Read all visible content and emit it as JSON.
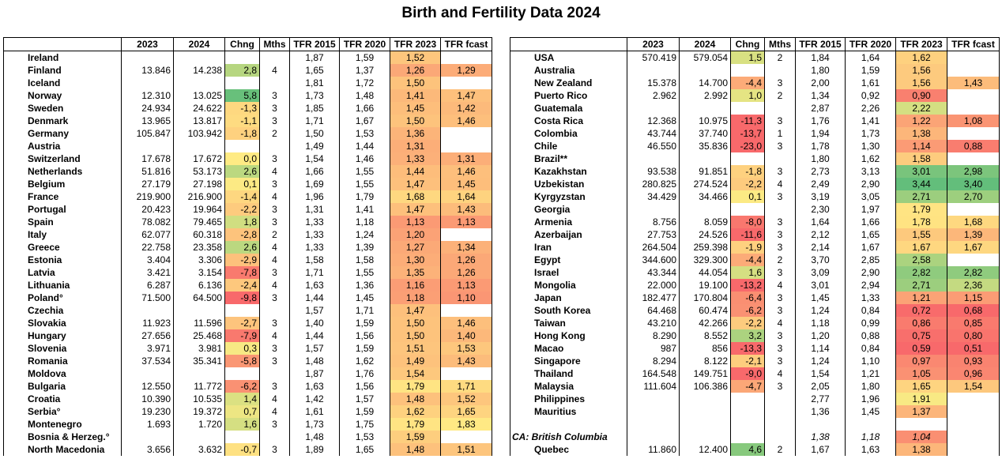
{
  "title": "Birth and Fertility Data 2024",
  "tables": [
    {
      "columns": [
        "2023",
        "2024",
        "Chng",
        "Mths",
        "TFR 2015",
        "TFR 2020",
        "TFR 2023",
        "TFR fcast"
      ],
      "rows": [
        [
          "Ireland",
          null,
          null,
          null,
          null,
          "1,87",
          "1,59",
          "1,52",
          null
        ],
        [
          "Finland",
          "13.846",
          "14.238",
          "2,8",
          "4",
          "1,65",
          "1,37",
          "1,26",
          "1,29"
        ],
        [
          "Iceland",
          null,
          null,
          null,
          null,
          "1,81",
          "1,72",
          "1,50",
          null
        ],
        [
          "Norway",
          "12.310",
          "13.025",
          "5,8",
          "3",
          "1,73",
          "1,48",
          "1,41",
          "1,47"
        ],
        [
          "Sweden",
          "24.934",
          "24.622",
          "-1,3",
          "3",
          "1,85",
          "1,66",
          "1,45",
          "1,42"
        ],
        [
          "Denmark",
          "13.965",
          "13.817",
          "-1,1",
          "3",
          "1,71",
          "1,67",
          "1,50",
          "1,46"
        ],
        [
          "Germany",
          "105.847",
          "103.942",
          "-1,8",
          "2",
          "1,50",
          "1,53",
          "1,36",
          null
        ],
        [
          "Austria",
          null,
          null,
          null,
          null,
          "1,49",
          "1,44",
          "1,31",
          null
        ],
        [
          "Switzerland",
          "17.678",
          "17.672",
          "0,0",
          "3",
          "1,54",
          "1,46",
          "1,33",
          "1,31"
        ],
        [
          "Netherlands",
          "51.816",
          "53.173",
          "2,6",
          "4",
          "1,66",
          "1,55",
          "1,44",
          "1,46"
        ],
        [
          "Belgium",
          "27.179",
          "27.198",
          "0,1",
          "3",
          "1,69",
          "1,55",
          "1,47",
          "1,45"
        ],
        [
          "France",
          "219.900",
          "216.900",
          "-1,4",
          "4",
          "1,96",
          "1,79",
          "1,68",
          "1,64"
        ],
        [
          "Portugal",
          "20.423",
          "19.964",
          "-2,2",
          "3",
          "1,31",
          "1,41",
          "1,47",
          "1,43"
        ],
        [
          "Spain",
          "78.082",
          "79.465",
          "1,8",
          "3",
          "1,33",
          "1,18",
          "1,13",
          "1,13"
        ],
        [
          "Italy",
          "62.077",
          "60.318",
          "-2,8",
          "2",
          "1,33",
          "1,24",
          "1,20",
          null
        ],
        [
          "Greece",
          "22.758",
          "23.358",
          "2,6",
          "4",
          "1,33",
          "1,39",
          "1,27",
          "1,34"
        ],
        [
          "Estonia",
          "3.404",
          "3.306",
          "-2,9",
          "4",
          "1,58",
          "1,58",
          "1,30",
          "1,26"
        ],
        [
          "Latvia",
          "3.421",
          "3.154",
          "-7,8",
          "3",
          "1,71",
          "1,55",
          "1,35",
          "1,26"
        ],
        [
          "Lithuania",
          "6.287",
          "6.136",
          "-2,4",
          "4",
          "1,63",
          "1,36",
          "1,16",
          "1,13"
        ],
        [
          "Poland°",
          "71.500",
          "64.500",
          "-9,8",
          "3",
          "1,44",
          "1,45",
          "1,18",
          "1,10"
        ],
        [
          "Czechia",
          null,
          null,
          null,
          null,
          "1,57",
          "1,71",
          "1,47",
          null
        ],
        [
          "Slovakia",
          "11.923",
          "11.596",
          "-2,7",
          "3",
          "1,40",
          "1,59",
          "1,50",
          "1,46"
        ],
        [
          "Hungary",
          "27.656",
          "25.468",
          "-7,9",
          "4",
          "1,44",
          "1,56",
          "1,50",
          "1,40"
        ],
        [
          "Slovenia",
          "3.971",
          "3.981",
          "0,3",
          "3",
          "1,57",
          "1,59",
          "1,51",
          "1,53"
        ],
        [
          "Romania",
          "37.534",
          "35.341",
          "-5,8",
          "3",
          "1,48",
          "1,62",
          "1,49",
          "1,43"
        ],
        [
          "Moldova",
          null,
          null,
          null,
          null,
          "1,87",
          "1,76",
          "1,54",
          null
        ],
        [
          "Bulgaria",
          "12.550",
          "11.772",
          "-6,2",
          "3",
          "1,63",
          "1,56",
          "1,79",
          "1,71"
        ],
        [
          "Croatia",
          "10.390",
          "10.535",
          "1,4",
          "4",
          "1,42",
          "1,57",
          "1,48",
          "1,52"
        ],
        [
          "Serbia°",
          "19.230",
          "19.372",
          "0,7",
          "4",
          "1,61",
          "1,59",
          "1,62",
          "1,65"
        ],
        [
          "Montenegro",
          "1.693",
          "1.720",
          "1,6",
          "3",
          "1,73",
          "1,75",
          "1,79",
          "1,83"
        ],
        [
          "Bosnia & Herzeg.°",
          null,
          null,
          null,
          null,
          "1,48",
          "1,53",
          "1,59",
          null
        ],
        [
          "North Macedonia",
          "3.656",
          "3.632",
          "-0,7",
          "3",
          "1,89",
          "1,65",
          "1,48",
          "1,51"
        ]
      ]
    },
    {
      "columns": [
        "2023",
        "2024",
        "Chng",
        "Mths",
        "TFR 2015",
        "TFR 2020",
        "TFR 2023",
        "TFR fcast"
      ],
      "rows": [
        [
          "USA",
          "570.419",
          "579.054",
          "1,5",
          "2",
          "1,84",
          "1,64",
          "1,62",
          null
        ],
        [
          "Australia",
          null,
          null,
          null,
          null,
          "1,80",
          "1,59",
          "1,56",
          null
        ],
        [
          "New Zealand",
          "15.378",
          "14.700",
          "-4,4",
          "3",
          "2,00",
          "1,61",
          "1,56",
          "1,43"
        ],
        [
          "Puerto Rico",
          "2.962",
          "2.992",
          "1,0",
          "2",
          "1,34",
          "0,92",
          "0,90",
          null
        ],
        [
          "Guatemala",
          null,
          null,
          null,
          null,
          "2,87",
          "2,26",
          "2,22",
          null
        ],
        [
          "Costa Rica",
          "12.368",
          "10.975",
          "-11,3",
          "3",
          "1,76",
          "1,41",
          "1,22",
          "1,08"
        ],
        [
          "Colombia",
          "43.744",
          "37.740",
          "-13,7",
          "1",
          "1,94",
          "1,73",
          "1,38",
          null
        ],
        [
          "Chile",
          "46.550",
          "35.836",
          "-23,0",
          "3",
          "1,78",
          "1,30",
          "1,14",
          "0,88"
        ],
        [
          "Brazil**",
          null,
          null,
          null,
          null,
          "1,80",
          "1,62",
          "1,58",
          null
        ],
        [
          "Kazakhstan",
          "93.538",
          "91.851",
          "-1,8",
          "3",
          "2,73",
          "3,13",
          "3,01",
          "2,98"
        ],
        [
          "Uzbekistan",
          "280.825",
          "274.524",
          "-2,2",
          "4",
          "2,49",
          "2,90",
          "3,44",
          "3,40"
        ],
        [
          "Kyrgyzstan",
          "34.429",
          "34.466",
          "0,1",
          "3",
          "3,19",
          "3,05",
          "2,71",
          "2,70"
        ],
        [
          "Georgia",
          null,
          null,
          null,
          null,
          "2,30",
          "1,97",
          "1,79",
          null
        ],
        [
          "Armenia",
          "8.756",
          "8.059",
          "-8,0",
          "3",
          "1,64",
          "1,66",
          "1,78",
          "1,68"
        ],
        [
          "Azerbaijan",
          "27.753",
          "24.526",
          "-11,6",
          "3",
          "2,12",
          "1,65",
          "1,55",
          "1,39"
        ],
        [
          "Iran",
          "264.504",
          "259.398",
          "-1,9",
          "3",
          "2,14",
          "1,67",
          "1,67",
          "1,67"
        ],
        [
          "Egypt",
          "344.600",
          "329.300",
          "-4,4",
          "2",
          "3,70",
          "2,85",
          "2,58",
          null
        ],
        [
          "Israel",
          "43.344",
          "44.054",
          "1,6",
          "3",
          "3,09",
          "2,90",
          "2,82",
          "2,82"
        ],
        [
          "Mongolia",
          "22.000",
          "19.100",
          "-13,2",
          "4",
          "3,01",
          "2,94",
          "2,71",
          "2,36"
        ],
        [
          "Japan",
          "182.477",
          "170.804",
          "-6,4",
          "3",
          "1,45",
          "1,33",
          "1,21",
          "1,15"
        ],
        [
          "South Korea",
          "64.468",
          "60.474",
          "-6,2",
          "3",
          "1,24",
          "0,84",
          "0,72",
          "0,68"
        ],
        [
          "Taiwan",
          "43.210",
          "42.266",
          "-2,2",
          "4",
          "1,18",
          "0,99",
          "0,86",
          "0,85"
        ],
        [
          "Hong Kong",
          "8.290",
          "8.552",
          "3,2",
          "3",
          "1,20",
          "0,88",
          "0,75",
          "0,80"
        ],
        [
          "Macao",
          "987",
          "856",
          "-13,3",
          "3",
          "1,14",
          "0,84",
          "0,59",
          "0,51"
        ],
        [
          "Singapore",
          "8.294",
          "8.122",
          "-2,1",
          "3",
          "1,24",
          "1,10",
          "0,97",
          "0,93"
        ],
        [
          "Thailand",
          "164.548",
          "149.751",
          "-9,0",
          "4",
          "1,54",
          "1,21",
          "1,05",
          "0,96"
        ],
        [
          "Malaysia",
          "111.604",
          "106.386",
          "-4,7",
          "3",
          "2,05",
          "1,80",
          "1,65",
          "1,54"
        ],
        [
          "Philippines",
          null,
          null,
          null,
          null,
          "2,77",
          "1,96",
          "1,91",
          null
        ],
        [
          "Mauritius",
          null,
          null,
          null,
          null,
          "1,36",
          "1,45",
          "1,37",
          null
        ],
        [
          null,
          null,
          null,
          null,
          null,
          null,
          null,
          null,
          null
        ],
        [
          "CA: British Columbia",
          null,
          null,
          null,
          null,
          "1,38",
          "1,18",
          "1,04",
          null
        ],
        [
          "Quebec",
          "11.860",
          "12.400",
          "4,6",
          "2",
          "1,67",
          "1,63",
          "1,38",
          null
        ]
      ]
    }
  ]
}
